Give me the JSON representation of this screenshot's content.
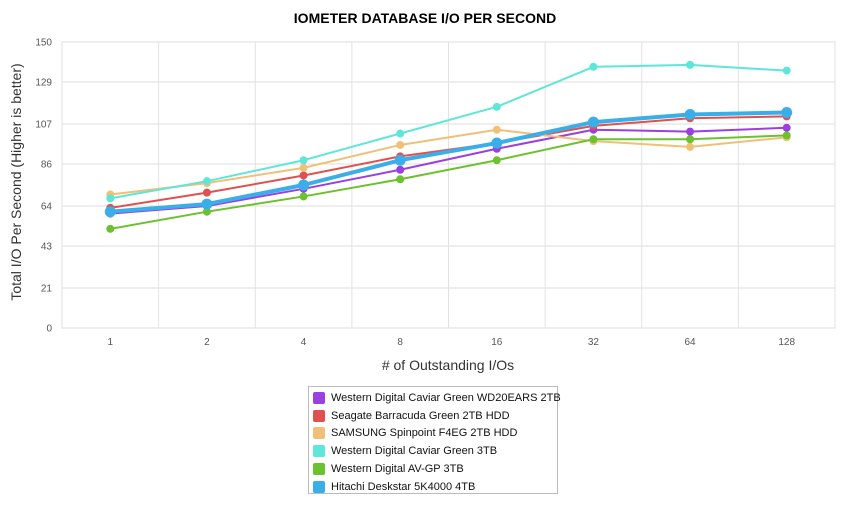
{
  "chart_data": {
    "type": "line",
    "title": "IOMETER DATABASE I/O PER SECOND",
    "xlabel": "# of Outstanding I/Os",
    "ylabel": "Total I/O Per Second (Higher is better)",
    "categories": [
      "1",
      "2",
      "4",
      "8",
      "16",
      "32",
      "64",
      "128"
    ],
    "yticks": [
      "0",
      "21",
      "43",
      "64",
      "86",
      "107",
      "129",
      "150"
    ],
    "ylim": [
      0,
      150
    ],
    "grid": true,
    "legend_position": "bottom",
    "series": [
      {
        "name": "Western Digital Caviar Green WD20EARS 2TB",
        "color": "#9b3fe0",
        "values": [
          60,
          64,
          73,
          83,
          94,
          104,
          103,
          105
        ]
      },
      {
        "name": "Seagate Barracuda Green 2TB HDD",
        "color": "#e0504e",
        "values": [
          63,
          71,
          80,
          90,
          97,
          106,
          110,
          111
        ]
      },
      {
        "name": "SAMSUNG Spinpoint F4EG 2TB HDD",
        "color": "#f0c078",
        "values": [
          70,
          76,
          84,
          96,
          104,
          98,
          95,
          100
        ]
      },
      {
        "name": "Western Digital Caviar Green 3TB",
        "color": "#5ee6d8",
        "values": [
          68,
          77,
          88,
          102,
          116,
          137,
          138,
          135
        ]
      },
      {
        "name": "Western Digital AV-GP 3TB",
        "color": "#6cc12e",
        "values": [
          52,
          61,
          69,
          78,
          88,
          99,
          99,
          101
        ]
      },
      {
        "name": "Hitachi Deskstar 5K4000 4TB",
        "color": "#3aaee8",
        "values": [
          61,
          65,
          75,
          88,
          97,
          108,
          112,
          113
        ]
      }
    ]
  }
}
